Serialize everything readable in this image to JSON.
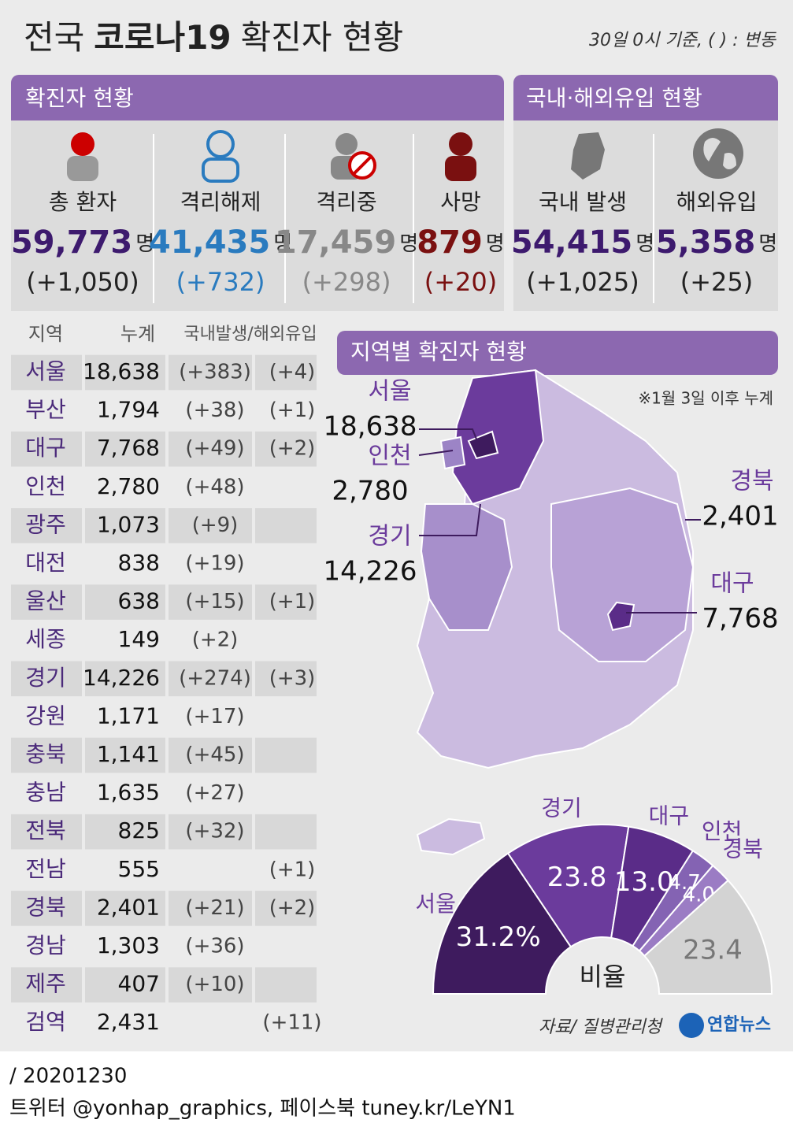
{
  "header": {
    "title_prefix": "전국",
    "title_bold": "코로나19",
    "title_suffix": "확진자 현황",
    "note": "30일 0시 기준, ( ) : 변동"
  },
  "confirmed": {
    "heading": "확진자 현황",
    "items": [
      {
        "label": "총 환자",
        "count": "59,773",
        "unit": "명",
        "change": "(+1,050)"
      },
      {
        "label": "격리해제",
        "count": "41,435",
        "unit": "명",
        "change": "(+732)"
      },
      {
        "label": "격리중",
        "count": "17,459",
        "unit": "명",
        "change": "(+298)"
      },
      {
        "label": "사망",
        "count": "879",
        "unit": "명",
        "change": "(+20)"
      }
    ]
  },
  "origin": {
    "heading": "국내·해외유입 현황",
    "items": [
      {
        "label": "국내 발생",
        "count": "54,415",
        "unit": "명",
        "change": "(+1,025)"
      },
      {
        "label": "해외유입",
        "count": "5,358",
        "unit": "명",
        "change": "(+25)"
      }
    ]
  },
  "table": {
    "columns": [
      "지역",
      "누계",
      "국내발생/해외유입"
    ],
    "rows": [
      [
        "서울",
        "18,638",
        "(+383)",
        "(+4)"
      ],
      [
        "부산",
        "1,794",
        "(+38)",
        "(+1)"
      ],
      [
        "대구",
        "7,768",
        "(+49)",
        "(+2)"
      ],
      [
        "인천",
        "2,780",
        "(+48)",
        null
      ],
      [
        "광주",
        "1,073",
        "(+9)",
        null
      ],
      [
        "대전",
        "838",
        "(+19)",
        null
      ],
      [
        "울산",
        "638",
        "(+15)",
        "(+1)"
      ],
      [
        "세종",
        "149",
        "(+2)",
        null
      ],
      [
        "경기",
        "14,226",
        "(+274)",
        "(+3)"
      ],
      [
        "강원",
        "1,171",
        "(+17)",
        null
      ],
      [
        "충북",
        "1,141",
        "(+45)",
        null
      ],
      [
        "충남",
        "1,635",
        "(+27)",
        null
      ],
      [
        "전북",
        "825",
        "(+32)",
        null
      ],
      [
        "전남",
        "555",
        null,
        "(+1)"
      ],
      [
        "경북",
        "2,401",
        "(+21)",
        "(+2)"
      ],
      [
        "경남",
        "1,303",
        "(+36)",
        null
      ],
      [
        "제주",
        "407",
        "(+10)",
        null
      ],
      [
        "검역",
        "2,431",
        null,
        "(+11)"
      ]
    ]
  },
  "map": {
    "heading": "지역별 확진자 현황",
    "note": "※1월 3일 이후 누계",
    "labels": [
      {
        "name": "서울",
        "value": "18,638"
      },
      {
        "name": "인천",
        "value": "2,780"
      },
      {
        "name": "경기",
        "value": "14,226"
      },
      {
        "name": "경북",
        "value": "2,401"
      },
      {
        "name": "대구",
        "value": "7,768"
      }
    ]
  },
  "chart_data": {
    "type": "pie",
    "title": "비율",
    "categories": [
      "서울",
      "경기",
      "대구",
      "인천",
      "경북",
      null
    ],
    "values": [
      31.2,
      23.8,
      13.0,
      4.7,
      4.0,
      23.4
    ],
    "value_labels": [
      "31.2%",
      "23.8",
      "13.0",
      "4.7",
      "4.0",
      "23.4"
    ],
    "colors": [
      "#3e1b5e",
      "#6b3b9c",
      "#5a2c88",
      "#8463b3",
      "#9b7cc4",
      "#d3d3d3"
    ]
  },
  "footer": {
    "source": "자료/ 질병관리청",
    "logo": "연합뉴스",
    "date": "/ 20201230",
    "social": "트위터 @yonhap_graphics, 페이스북 tuney.kr/LeYN1"
  }
}
